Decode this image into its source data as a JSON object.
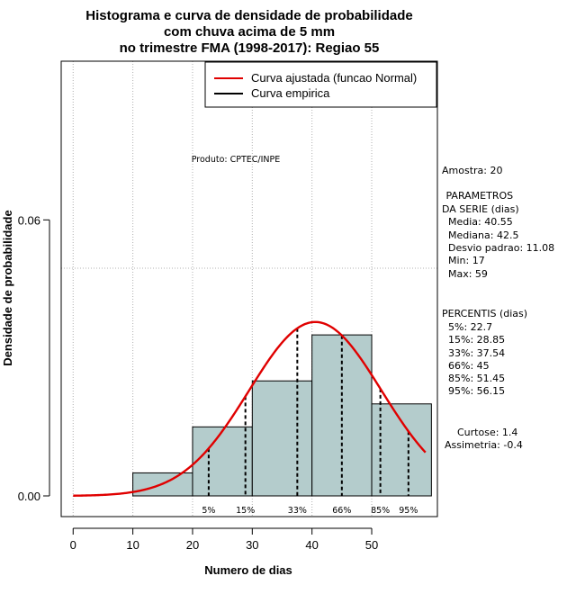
{
  "chart_data": {
    "type": "histogram",
    "title_lines": [
      "Histograma e curva de densidade de probabilidade",
      "com chuva acima de 5 mm",
      "no trimestre FMA (1998-2017): Regiao 55"
    ],
    "xlabel": "Numero de dias",
    "ylabel": "Densidade de probabilidade",
    "xlim": [
      -2,
      61
    ],
    "ylim": [
      -0.0045,
      0.0945
    ],
    "x_ticks": [
      0,
      10,
      20,
      30,
      40,
      50
    ],
    "y_ticks": [
      {
        "value": 0.0,
        "label": "0.00"
      },
      {
        "value": 0.06,
        "label": "0.06"
      }
    ],
    "grid": true,
    "grid_x": [
      0,
      10,
      20,
      30,
      40,
      50
    ],
    "grid_y": [
      0.0495
    ],
    "bins": [
      {
        "x0": 10,
        "x1": 20,
        "density": 0.005
      },
      {
        "x0": 20,
        "x1": 30,
        "density": 0.015
      },
      {
        "x0": 30,
        "x1": 40,
        "density": 0.025
      },
      {
        "x0": 40,
        "x1": 50,
        "density": 0.035
      },
      {
        "x0": 50,
        "x1": 60,
        "density": 0.02
      }
    ],
    "fitted_curve": {
      "name": "Curva ajustada (funcao Normal)",
      "distribution": "normal",
      "mean": 40.55,
      "sd": 11.08,
      "x_range": [
        0,
        59
      ],
      "scale": 1.05
    },
    "percentile_lines": [
      {
        "label": "5%",
        "x": 22.7
      },
      {
        "label": "15%",
        "x": 28.85
      },
      {
        "label": "33%",
        "x": 37.54
      },
      {
        "label": "66%",
        "x": 45
      },
      {
        "label": "85%",
        "x": 51.45
      },
      {
        "label": "95%",
        "x": 56.15
      }
    ],
    "legend": {
      "position": "top-right",
      "entries": [
        {
          "label": "Curva ajustada (funcao Normal)",
          "color": "#e00000"
        },
        {
          "label": "Curva empirica",
          "color": "#000000"
        }
      ]
    },
    "annotation": "Produto: CPTEC/INPE",
    "colors": {
      "bar_fill": "#b4cccc",
      "curve": "#e00000",
      "grid": "#b0b0b0"
    }
  },
  "stats_panel": {
    "amostra": "Amostra: 20",
    "parametros_title1": " PARAMETROS",
    "parametros_title2": "DA SERIE (dias)",
    "media": "  Media: 40.55",
    "mediana": "  Mediana: 42.5",
    "desvio": "  Desvio padrao: 11.08",
    "min": "  Min: 17",
    "max": "  Max: 59",
    "percentis_title": "PERCENTIS (dias)",
    "p5": "  5%: 22.7",
    "p15": "  15%: 28.85",
    "p33": "  33%: 37.54",
    "p66": "  66%: 45",
    "p85": "  85%: 51.45",
    "p95": "  95%: 56.15",
    "curtose": "Curtose: 1.4",
    "assimetria": "Assimetria: -0.4"
  }
}
